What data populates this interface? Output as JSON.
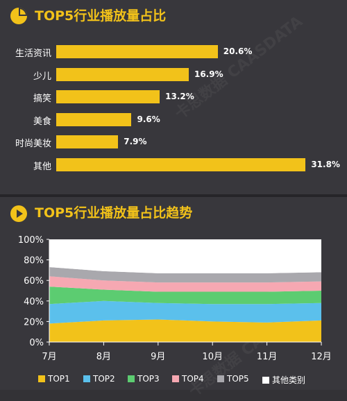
{
  "chart_data": [
    {
      "type": "bar",
      "title": "TOP5行业播放量占比",
      "categories": [
        "生活资讯",
        "少儿",
        "搞笑",
        "美食",
        "时尚美妆",
        "其他"
      ],
      "values": [
        20.6,
        16.9,
        13.2,
        9.6,
        7.9,
        31.8
      ],
      "value_labels": [
        "20.6%",
        "16.9%",
        "13.2%",
        "9.6%",
        "7.9%",
        "31.8%"
      ],
      "orientation": "horizontal",
      "bar_color": "#f2c21a"
    },
    {
      "type": "area",
      "stacked": true,
      "title": "TOP5行业播放量占比趋势",
      "x": [
        "7月",
        "8月",
        "9月",
        "10月",
        "11月",
        "12月"
      ],
      "ylim": [
        0,
        100
      ],
      "y_ticks": [
        "0%",
        "20%",
        "40%",
        "60%",
        "80%",
        "100%"
      ],
      "grid": false,
      "legend_position": "bottom",
      "series": [
        {
          "name": "TOP1",
          "color": "#f2c21a",
          "values": [
            18,
            21,
            22,
            20,
            19,
            21
          ]
        },
        {
          "name": "TOP2",
          "color": "#5bc0ec",
          "values": [
            19,
            19,
            16,
            17,
            18,
            17
          ]
        },
        {
          "name": "TOP3",
          "color": "#5ccc71",
          "values": [
            17,
            11,
            11,
            12,
            12,
            12
          ]
        },
        {
          "name": "TOP4",
          "color": "#f6a8b2",
          "values": [
            10,
            9,
            9,
            9,
            9,
            9
          ]
        },
        {
          "name": "TOP5",
          "color": "#a9a8ad",
          "values": [
            9,
            9,
            9,
            9,
            9,
            9
          ]
        },
        {
          "name": "其他类别",
          "color": "#ffffff",
          "values": [
            27,
            31,
            33,
            33,
            33,
            32
          ]
        }
      ]
    }
  ],
  "watermark": "卡思数据 CAASDATA"
}
